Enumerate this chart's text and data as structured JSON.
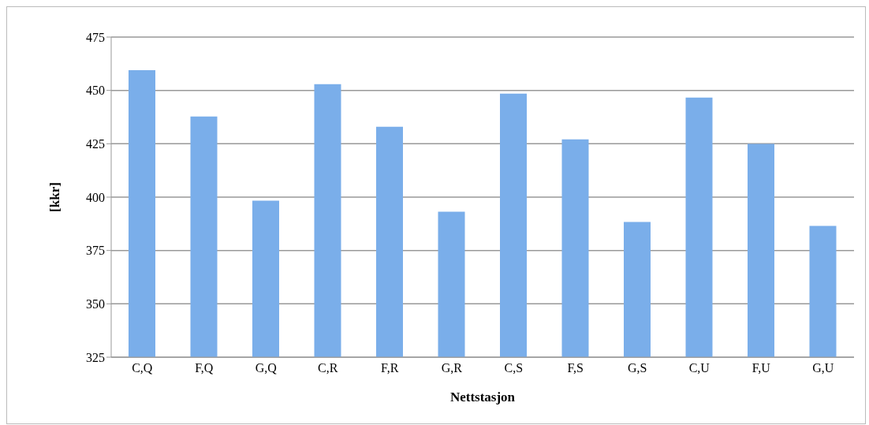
{
  "chart_data": {
    "type": "bar",
    "xlabel": "Nettstasjon",
    "ylabel": "[kkr]",
    "categories": [
      "C,Q",
      "F,Q",
      "G,Q",
      "C,R",
      "F,R",
      "G,R",
      "C,S",
      "F,S",
      "G,S",
      "C,U",
      "F,U",
      "G,U"
    ],
    "values": [
      459.5,
      437.8,
      398.3,
      452.9,
      433,
      393.2,
      448.5,
      427.1,
      388.4,
      446.6,
      424.9,
      386.5
    ],
    "color": "#7aaeea",
    "ylim": [
      325,
      475
    ],
    "yticks": [
      325,
      350,
      375,
      400,
      425,
      450,
      475
    ],
    "grid": "y"
  }
}
